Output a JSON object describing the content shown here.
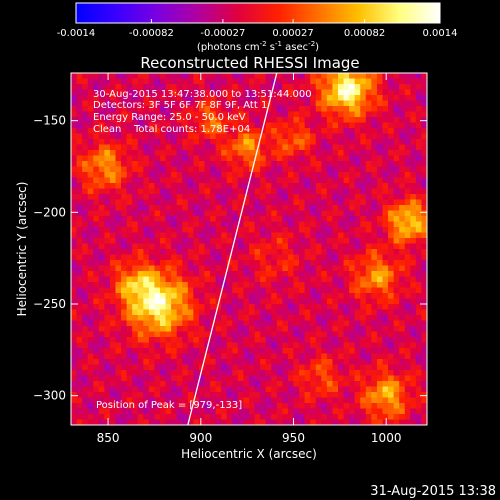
{
  "colorbar": {
    "tick_labels": [
      "-0.0014",
      "-0.00082",
      "-0.00027",
      "0.00027",
      "0.00082",
      "0.0014"
    ],
    "tick_values": [
      -0.0014,
      -0.00082,
      -0.00027,
      0.00027,
      0.00082,
      0.0014
    ],
    "range": [
      -0.0014,
      0.0014
    ],
    "unit_label": "(photons cm",
    "unit_exp1": "-2",
    "unit_mid": " s",
    "unit_exp2": "-1",
    "unit_end": " asec",
    "unit_exp3": "-2",
    "unit_close": ")",
    "colors": [
      "#0000ff",
      "#3a00ff",
      "#7a00e0",
      "#b000a0",
      "#e00040",
      "#ff2000",
      "#ff7000",
      "#ffc000",
      "#ffff80",
      "#ffffff"
    ]
  },
  "chart_data": {
    "type": "heatmap",
    "title": "Reconstructed RHESSI Image",
    "xlabel": "Heliocentric X (arcsec)",
    "ylabel": "Heliocentric Y (arcsec)",
    "xlim": [
      830,
      1022
    ],
    "ylim": [
      -316,
      -124
    ],
    "xticks": [
      850,
      900,
      950,
      1000
    ],
    "yticks": [
      -150,
      -200,
      -250,
      -300
    ],
    "xtick_labels": [
      "850",
      "900",
      "950",
      "1000"
    ],
    "ytick_labels": [
      "−150",
      "−200",
      "−250",
      "−300"
    ],
    "annotations": [
      "30-Aug-2015 13:47:38.000 to 13:51:44.000",
      "Detectors: 3F 5F 6F 7F 8F 9F, Att 1",
      "Energy Range: 25.0 - 50.0 keV",
      "Clean",
      "Total counts: 1.78E+04"
    ],
    "peak_label": "Position of Peak = [979,-133]",
    "peak_position": [
      979,
      -133
    ],
    "limb_line": [
      [
        893,
        -316
      ],
      [
        941,
        -124
      ]
    ],
    "sources": [
      {
        "x": 877,
        "y": -250,
        "peak": 0.00135,
        "sigma": 12
      },
      {
        "x": 864,
        "y": -238,
        "peak": 0.0006,
        "sigma": 8
      },
      {
        "x": 979,
        "y": -133,
        "peak": 0.0014,
        "sigma": 10
      },
      {
        "x": 1012,
        "y": -205,
        "peak": 0.0011,
        "sigma": 8
      },
      {
        "x": 995,
        "y": -235,
        "peak": 0.0008,
        "sigma": 9
      },
      {
        "x": 1000,
        "y": -300,
        "peak": 0.0009,
        "sigma": 9
      },
      {
        "x": 848,
        "y": -175,
        "peak": 0.0008,
        "sigma": 9
      },
      {
        "x": 925,
        "y": -165,
        "peak": 0.00075,
        "sigma": 8
      },
      {
        "x": 905,
        "y": -150,
        "peak": 0.0006,
        "sigma": 7
      },
      {
        "x": 950,
        "y": -160,
        "peak": 0.0006,
        "sigma": 7
      },
      {
        "x": 965,
        "y": -290,
        "peak": 0.0005,
        "sigma": 8
      },
      {
        "x": 940,
        "y": -225,
        "peak": 0.0003,
        "sigma": 10
      }
    ]
  },
  "footer": {
    "timestamp": "31-Aug-2015 13:38"
  }
}
